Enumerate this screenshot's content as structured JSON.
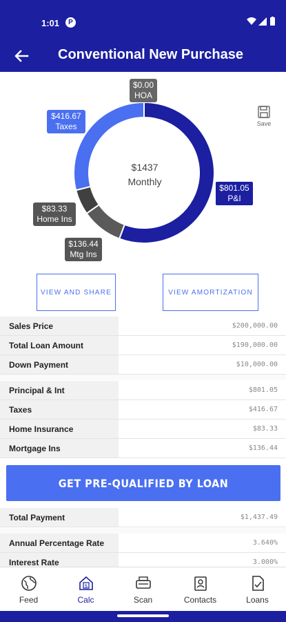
{
  "status": {
    "time": "1:01",
    "notif_glyph": "P"
  },
  "header": {
    "title": "Conventional New Purchase",
    "back_icon": "arrow-left-icon"
  },
  "chart": {
    "center_amount": "$1437",
    "center_label": "Monthly",
    "save_label": "Save",
    "tags": {
      "hoa": {
        "amount": "$0.00",
        "label": "HOA"
      },
      "taxes": {
        "amount": "$416.67",
        "label": "Taxes"
      },
      "pi": {
        "amount": "$801.05",
        "label": "P&I"
      },
      "home_ins": {
        "amount": "$83.33",
        "label": "Home Ins"
      },
      "mtg_ins": {
        "amount": "$136.44",
        "label": "Mtg Ins"
      }
    }
  },
  "chart_data": {
    "type": "pie",
    "categories": [
      "P&I",
      "Mtg Ins",
      "Home Ins",
      "Taxes",
      "HOA"
    ],
    "values": [
      801.05,
      136.44,
      83.33,
      416.67,
      0.0
    ],
    "colors": [
      "#1b1fa0",
      "#5a5a5a",
      "#404040",
      "#4a6ff0",
      "#666666"
    ]
  },
  "buttons": {
    "view_share": "VIEW AND SHARE",
    "view_amortization": "VIEW AMORTIZATION",
    "prequalify": "GET PRE-QUALIFIED BY LOAN"
  },
  "table_loan": [
    {
      "label": "Sales Price",
      "value": "$200,000.00"
    },
    {
      "label": "Total Loan Amount",
      "value": "$190,000.00"
    },
    {
      "label": "Down Payment",
      "value": "$10,000.00"
    }
  ],
  "table_payment": [
    {
      "label": "Principal & Int",
      "value": "$801.05"
    },
    {
      "label": "Taxes",
      "value": "$416.67"
    },
    {
      "label": "Home Insurance",
      "value": "$83.33"
    },
    {
      "label": "Mortgage Ins",
      "value": "$136.44"
    }
  ],
  "table_total": [
    {
      "label": "Total Payment",
      "value": "$1,437.49"
    }
  ],
  "table_rates": [
    {
      "label": "Annual Percentage Rate",
      "value": "3.640%"
    },
    {
      "label": "Interest Rate",
      "value": "3.000%"
    }
  ],
  "nav": [
    {
      "label": "Feed",
      "icon": "globe-icon"
    },
    {
      "label": "Calc",
      "icon": "home-calc-icon"
    },
    {
      "label": "Scan",
      "icon": "scanner-icon"
    },
    {
      "label": "Contacts",
      "icon": "contacts-icon"
    },
    {
      "label": "Loans",
      "icon": "document-check-icon"
    }
  ]
}
